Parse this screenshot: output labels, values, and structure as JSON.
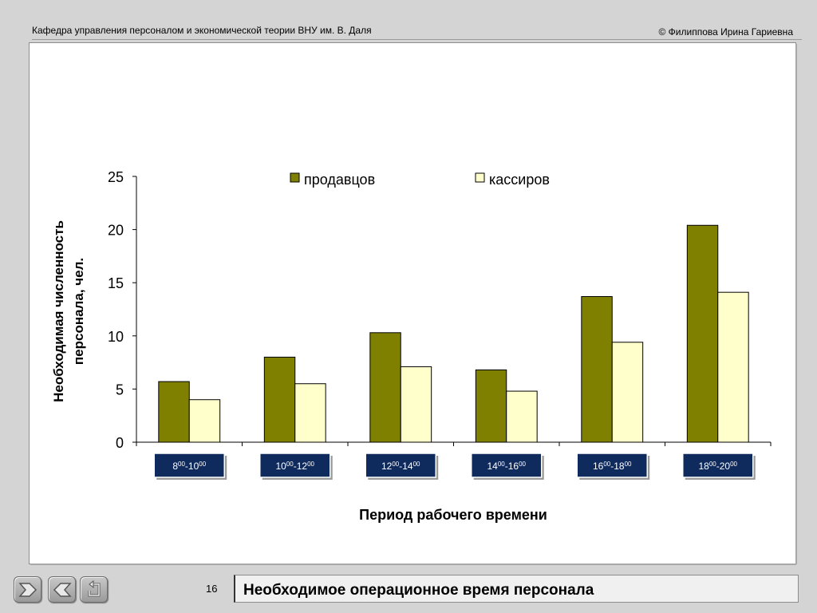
{
  "header": {
    "left": "Кафедра управления персоналом и экономической теории ВНУ им. В. Даля",
    "right": "© Филиппова Ирина Гариевна"
  },
  "footer": {
    "page_number": "16",
    "title": "Необходимое операционное время персонала",
    "nav": [
      "forward-icon",
      "back-icon",
      "return-icon"
    ]
  },
  "colors": {
    "prodavtsy": "#808000",
    "kassiry": "#ffffcc",
    "period_label_bg": "#0f2a5c",
    "background": "#d4d4d4"
  },
  "chart_data": {
    "type": "bar",
    "categories": [
      {
        "start": "8",
        "start_sup": "00",
        "end": "10",
        "end_sup": "00"
      },
      {
        "start": "10",
        "start_sup": "00",
        "end": "12",
        "end_sup": "00"
      },
      {
        "start": "12",
        "start_sup": "00",
        "end": "14",
        "end_sup": "00"
      },
      {
        "start": "14",
        "start_sup": "00",
        "end": "16",
        "end_sup": "00"
      },
      {
        "start": "16",
        "start_sup": "00",
        "end": "18",
        "end_sup": "00"
      },
      {
        "start": "18",
        "start_sup": "00",
        "end": "20",
        "end_sup": "00"
      }
    ],
    "series": [
      {
        "name": "продавцов",
        "values": [
          5.7,
          8.0,
          10.3,
          6.8,
          13.7,
          20.4
        ]
      },
      {
        "name": "кассиров",
        "values": [
          4.0,
          5.5,
          7.1,
          4.8,
          9.4,
          14.1
        ]
      }
    ],
    "ylabel_line1": "Необходимая численность",
    "ylabel_line2": "персонала, чел.",
    "xlabel": "Период рабочего времени",
    "ylim": [
      0,
      25
    ],
    "yticks": [
      "0",
      "5",
      "10",
      "15",
      "20",
      "25"
    ],
    "grid": false,
    "legend_position": "top"
  }
}
